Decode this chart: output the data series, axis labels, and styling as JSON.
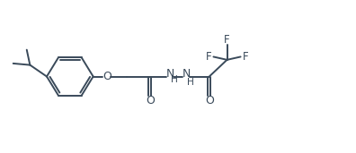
{
  "bg_color": "#ffffff",
  "line_color": "#3a4a5a",
  "text_color": "#3a4a5a",
  "line_width": 1.4,
  "font_size": 8.5,
  "figsize": [
    3.96,
    1.71
  ],
  "dpi": 100,
  "xlim": [
    0,
    11
  ],
  "ylim": [
    0,
    5
  ]
}
